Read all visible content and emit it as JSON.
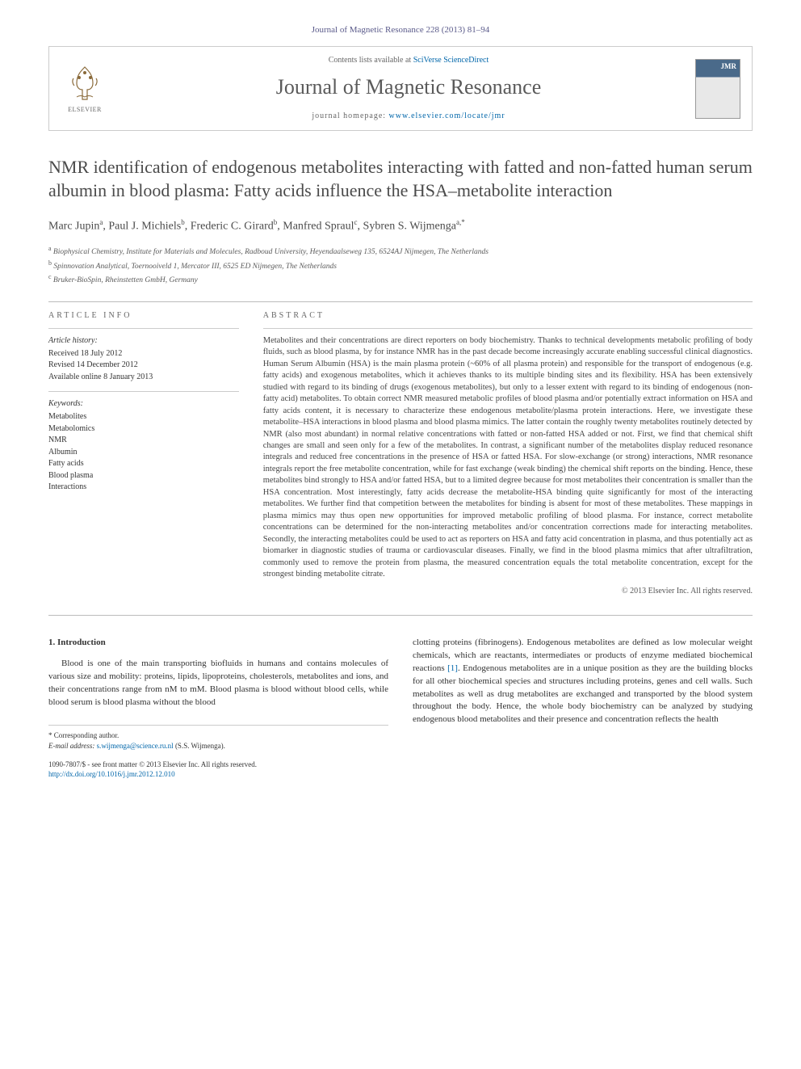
{
  "header": {
    "citation": "Journal of Magnetic Resonance 228 (2013) 81–94",
    "contents_prefix": "Contents lists available at ",
    "contents_link": "SciVerse ScienceDirect",
    "journal_name": "Journal of Magnetic Resonance",
    "homepage_prefix": "journal homepage: ",
    "homepage_link": "www.elsevier.com/locate/jmr",
    "elsevier_label": "ELSEVIER",
    "cover_label": "JMR"
  },
  "title": "NMR identification of endogenous metabolites interacting with fatted and non-fatted human serum albumin in blood plasma: Fatty acids influence the HSA–metabolite interaction",
  "authors_html": "Marc Jupin<sup>a</sup>, Paul J. Michiels<sup>b</sup>, Frederic C. Girard<sup>b</sup>, Manfred Spraul<sup>c</sup>, Sybren S. Wijmenga<sup>a,*</sup>",
  "affiliations": {
    "a": "Biophysical Chemistry, Institute for Materials and Molecules, Radboud University, Heyendaalseweg 135, 6524AJ Nijmegen, The Netherlands",
    "b": "Spinnovation Analytical, Toernooiveld 1, Mercator III, 6525 ED Nijmegen, The Netherlands",
    "c": "Bruker-BioSpin, Rheinstetten GmbH, Germany"
  },
  "article_info": {
    "head": "ARTICLE INFO",
    "history_label": "Article history:",
    "received": "Received 18 July 2012",
    "revised": "Revised 14 December 2012",
    "online": "Available online 8 January 2013",
    "keywords_label": "Keywords:",
    "keywords": [
      "Metabolites",
      "Metabolomics",
      "NMR",
      "Albumin",
      "Fatty acids",
      "Blood plasma",
      "Interactions"
    ]
  },
  "abstract": {
    "head": "ABSTRACT",
    "text": "Metabolites and their concentrations are direct reporters on body biochemistry. Thanks to technical developments metabolic profiling of body fluids, such as blood plasma, by for instance NMR has in the past decade become increasingly accurate enabling successful clinical diagnostics. Human Serum Albumin (HSA) is the main plasma protein (~60% of all plasma protein) and responsible for the transport of endogenous (e.g. fatty acids) and exogenous metabolites, which it achieves thanks to its multiple binding sites and its flexibility. HSA has been extensively studied with regard to its binding of drugs (exogenous metabolites), but only to a lesser extent with regard to its binding of endogenous (non-fatty acid) metabolites. To obtain correct NMR measured metabolic profiles of blood plasma and/or potentially extract information on HSA and fatty acids content, it is necessary to characterize these endogenous metabolite/plasma protein interactions. Here, we investigate these metabolite–HSA interactions in blood plasma and blood plasma mimics. The latter contain the roughly twenty metabolites routinely detected by NMR (also most abundant) in normal relative concentrations with fatted or non-fatted HSA added or not. First, we find that chemical shift changes are small and seen only for a few of the metabolites. In contrast, a significant number of the metabolites display reduced resonance integrals and reduced free concentrations in the presence of HSA or fatted HSA. For slow-exchange (or strong) interactions, NMR resonance integrals report the free metabolite concentration, while for fast exchange (weak binding) the chemical shift reports on the binding. Hence, these metabolites bind strongly to HSA and/or fatted HSA, but to a limited degree because for most metabolites their concentration is smaller than the HSA concentration. Most interestingly, fatty acids decrease the metabolite-HSA binding quite significantly for most of the interacting metabolites. We further find that competition between the metabolites for binding is absent for most of these metabolites. These mappings in plasma mimics may thus open new opportunities for improved metabolic profiling of blood plasma. For instance, correct metabolite concentrations can be determined for the non-interacting metabolites and/or concentration corrections made for interacting metabolites. Secondly, the interacting metabolites could be used to act as reporters on HSA and fatty acid concentration in plasma, and thus potentially act as biomarker in diagnostic studies of trauma or cardiovascular diseases. Finally, we find in the blood plasma mimics that after ultrafiltration, commonly used to remove the protein from plasma, the measured concentration equals the total metabolite concentration, except for the strongest binding metabolite citrate.",
    "copyright": "© 2013 Elsevier Inc. All rights reserved."
  },
  "body": {
    "intro_head": "1. Introduction",
    "para_left": "Blood is one of the main transporting biofluids in humans and contains molecules of various size and mobility: proteins, lipids, lipoproteins, cholesterols, metabolites and ions, and their concentrations range from nM to mM. Blood plasma is blood without blood cells, while blood serum is blood plasma without the blood",
    "para_right_1": "clotting proteins (fibrinogens). Endogenous metabolites are defined as low molecular weight chemicals, which are reactants, intermediates or products of enzyme mediated biochemical reactions ",
    "ref_1": "[1]",
    "para_right_2": ". Endogenous metabolites are in a unique position as they are the building blocks for all other biochemical species and structures including proteins, genes and cell walls. Such metabolites as well as drug metabolites are exchanged and transported by the blood system throughout the body. Hence, the whole body biochemistry can be analyzed by studying endogenous blood metabolites and their presence and concentration reflects the health"
  },
  "footer": {
    "corr_label": "* Corresponding author.",
    "email_label": "E-mail address: ",
    "email": "s.wijmenga@science.ru.nl",
    "email_name": " (S.S. Wijmenga).",
    "issn_line": "1090-7807/$ - see front matter © 2013 Elsevier Inc. All rights reserved.",
    "doi_label": "http://dx.doi.org/10.1016/j.jmr.2012.12.010"
  },
  "colors": {
    "link": "#0066aa",
    "text": "#333333",
    "heading": "#4a4a4a",
    "rule": "#bbbbbb"
  }
}
